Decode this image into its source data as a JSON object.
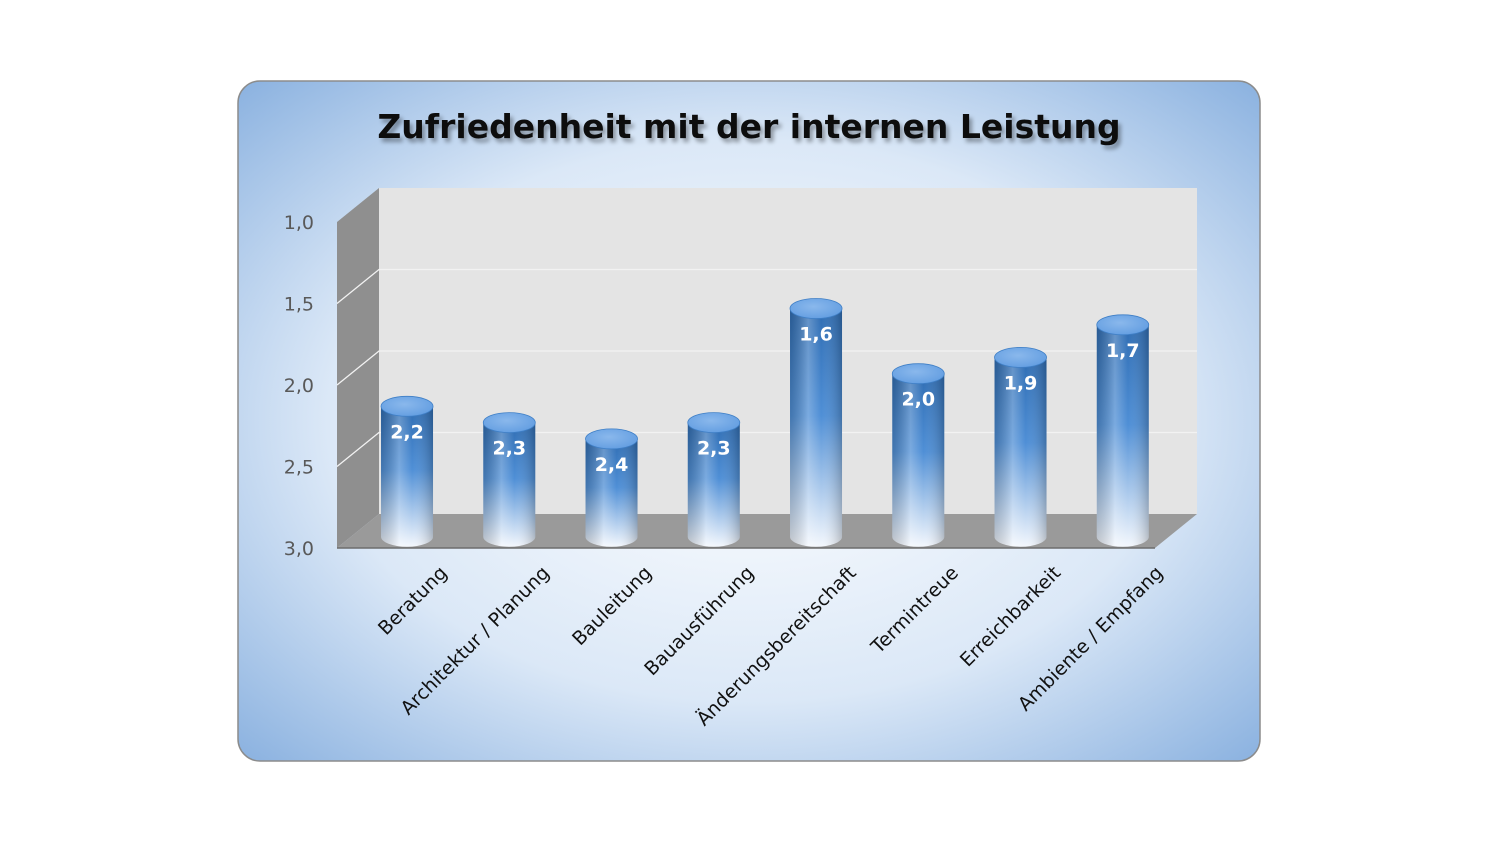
{
  "chart_data": {
    "type": "bar",
    "title": "Zufriedenheit mit der internen Leistung",
    "xlabel": "",
    "ylabel": "",
    "categories": [
      "Beratung",
      "Architektur / Planung",
      "Bauleitung",
      "Bauausführung",
      "Änderungsbereitschaft",
      "Termintreue",
      "Erreichbarkeit",
      "Ambiente / Empfang"
    ],
    "values": [
      2.2,
      2.3,
      2.4,
      2.3,
      1.6,
      2.0,
      1.9,
      1.7
    ],
    "value_labels": [
      "2,2",
      "2,3",
      "2,4",
      "2,3",
      "1,6",
      "2,0",
      "1,9",
      "1,7"
    ],
    "ylim": [
      1.0,
      3.0
    ],
    "y_axis_reversed": true,
    "yticks": [
      "1,0",
      "1,5",
      "2,0",
      "2,5",
      "3,0"
    ],
    "ytick_values": [
      1.0,
      1.5,
      2.0,
      2.5,
      3.0
    ],
    "grid": true,
    "legend": "none",
    "style": "3d-cylinder",
    "colors": {
      "bar_dark": "#2f6db3",
      "bar_mid": "#4f8fd6",
      "bar_light": "#f3f7fd",
      "bar_cap": "#5f9be0",
      "card_inner": "#ffffff",
      "card_outer": "#7ea9dc",
      "back_wall": "#e4e4e4",
      "side_wall": "#8f8f8f",
      "floor": "#9a9a9a",
      "tick_text": "#595959",
      "title_text": "#111111",
      "category_text": "#111111",
      "value_label_text": "#ffffff"
    }
  }
}
